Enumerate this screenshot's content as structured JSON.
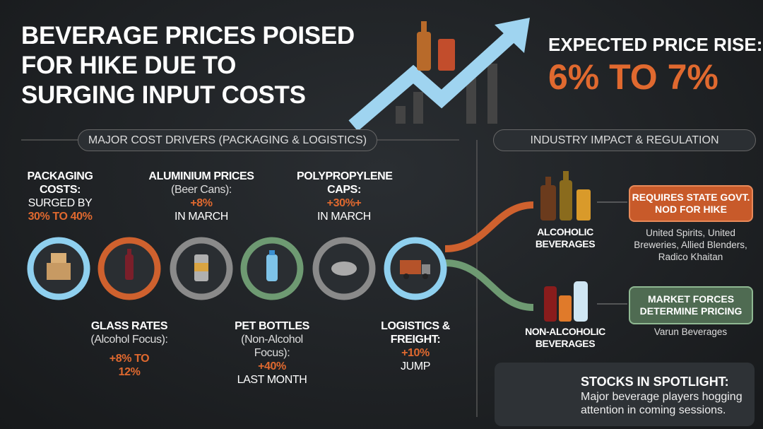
{
  "header": {
    "title_lines": [
      "BEVERAGE PRICES POISED",
      "FOR HIKE DUE TO",
      "SURGING INPUT COSTS"
    ],
    "rise_label": "EXPECTED PRICE RISE:",
    "rise_value": "6% TO 7%"
  },
  "drivers": {
    "heading": "MAJOR COST DRIVERS (PACKAGING & LOGISTICS)",
    "items": [
      {
        "label": "PACKAGING COSTS:",
        "detail": "SURGED BY",
        "value": "30% TO 40%"
      },
      {
        "label": "GLASS RATES",
        "detail": "(Alcohol Focus):",
        "value": "+8% TO 12%"
      },
      {
        "label": "ALUMINIUM PRICES",
        "detail": "(Beer Cans):",
        "value": "+8%",
        "note": "IN MARCH"
      },
      {
        "label": "PET BOTTLES",
        "detail": "(Non-Alcohol Focus):",
        "value": "+40%",
        "note": "LAST MONTH"
      },
      {
        "label": "POLYPROPYLENE CAPS:",
        "value": "+30%+",
        "note": "IN MARCH"
      },
      {
        "label": "LOGISTICS & FREIGHT:",
        "value": "+10%",
        "note": "JUMP"
      }
    ]
  },
  "impact": {
    "heading": "INDUSTRY IMPACT & REGULATION",
    "alcoholic": {
      "label": "ALCOHOLIC BEVERAGES",
      "rule": "REQUIRES STATE GOVT. NOD FOR HIKE",
      "companies": "United Spirits, United Breweries, Allied Blenders, Radico Khaitan"
    },
    "non_alcoholic": {
      "label": "NON-ALCOHOLIC BEVERAGES",
      "rule": "MARKET FORCES DETERMINE PRICING",
      "companies": "Varun Beverages"
    }
  },
  "spotlight": {
    "title": "STOCKS IN SPOTLIGHT:",
    "text": "Major beverage players hogging attention in coming sessions."
  }
}
